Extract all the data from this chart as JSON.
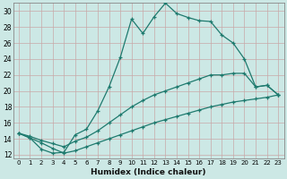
{
  "xlabel": "Humidex (Indice chaleur)",
  "background_color": "#cce8e5",
  "grid_color": "#b8d4d0",
  "line_color": "#1e7a6e",
  "xlim_min": -0.5,
  "xlim_max": 23.5,
  "ylim_min": 11.5,
  "ylim_max": 31.0,
  "xticks": [
    0,
    1,
    2,
    3,
    4,
    5,
    6,
    7,
    8,
    9,
    10,
    11,
    12,
    13,
    14,
    15,
    16,
    17,
    18,
    19,
    20,
    21,
    22,
    23
  ],
  "yticks": [
    12,
    14,
    16,
    18,
    20,
    22,
    24,
    26,
    28,
    30
  ],
  "line1_x": [
    0,
    1,
    2,
    3,
    4,
    5,
    6,
    7,
    8,
    9,
    10,
    11,
    12,
    13,
    14,
    15,
    16,
    17,
    18,
    19,
    20,
    21,
    22,
    23
  ],
  "line1_y": [
    14.7,
    14.1,
    12.7,
    12.2,
    12.3,
    14.5,
    15.2,
    17.5,
    20.5,
    24.2,
    29.0,
    27.2,
    29.3,
    31.0,
    29.7,
    29.2,
    28.8,
    28.7,
    27.0,
    26.0,
    24.0,
    20.5,
    20.7,
    19.5
  ],
  "line2_x": [
    0,
    1,
    2,
    3,
    4,
    5,
    6,
    7,
    8,
    9,
    10,
    11,
    12,
    13,
    14,
    15,
    16,
    17,
    18,
    19,
    20,
    21,
    22,
    23
  ],
  "line2_y": [
    14.7,
    14.3,
    13.8,
    13.4,
    13.0,
    13.7,
    14.2,
    15.0,
    16.0,
    17.0,
    18.0,
    18.8,
    19.5,
    20.0,
    20.5,
    21.0,
    21.5,
    22.0,
    22.0,
    22.2,
    22.2,
    20.5,
    20.7,
    19.5
  ],
  "line3_x": [
    0,
    1,
    2,
    3,
    4,
    5,
    6,
    7,
    8,
    9,
    10,
    11,
    12,
    13,
    14,
    15,
    16,
    17,
    18,
    19,
    20,
    21,
    22,
    23
  ],
  "line3_y": [
    14.7,
    14.1,
    13.5,
    12.8,
    12.2,
    12.5,
    13.0,
    13.5,
    14.0,
    14.5,
    15.0,
    15.5,
    16.0,
    16.4,
    16.8,
    17.2,
    17.6,
    18.0,
    18.3,
    18.6,
    18.8,
    19.0,
    19.2,
    19.5
  ]
}
